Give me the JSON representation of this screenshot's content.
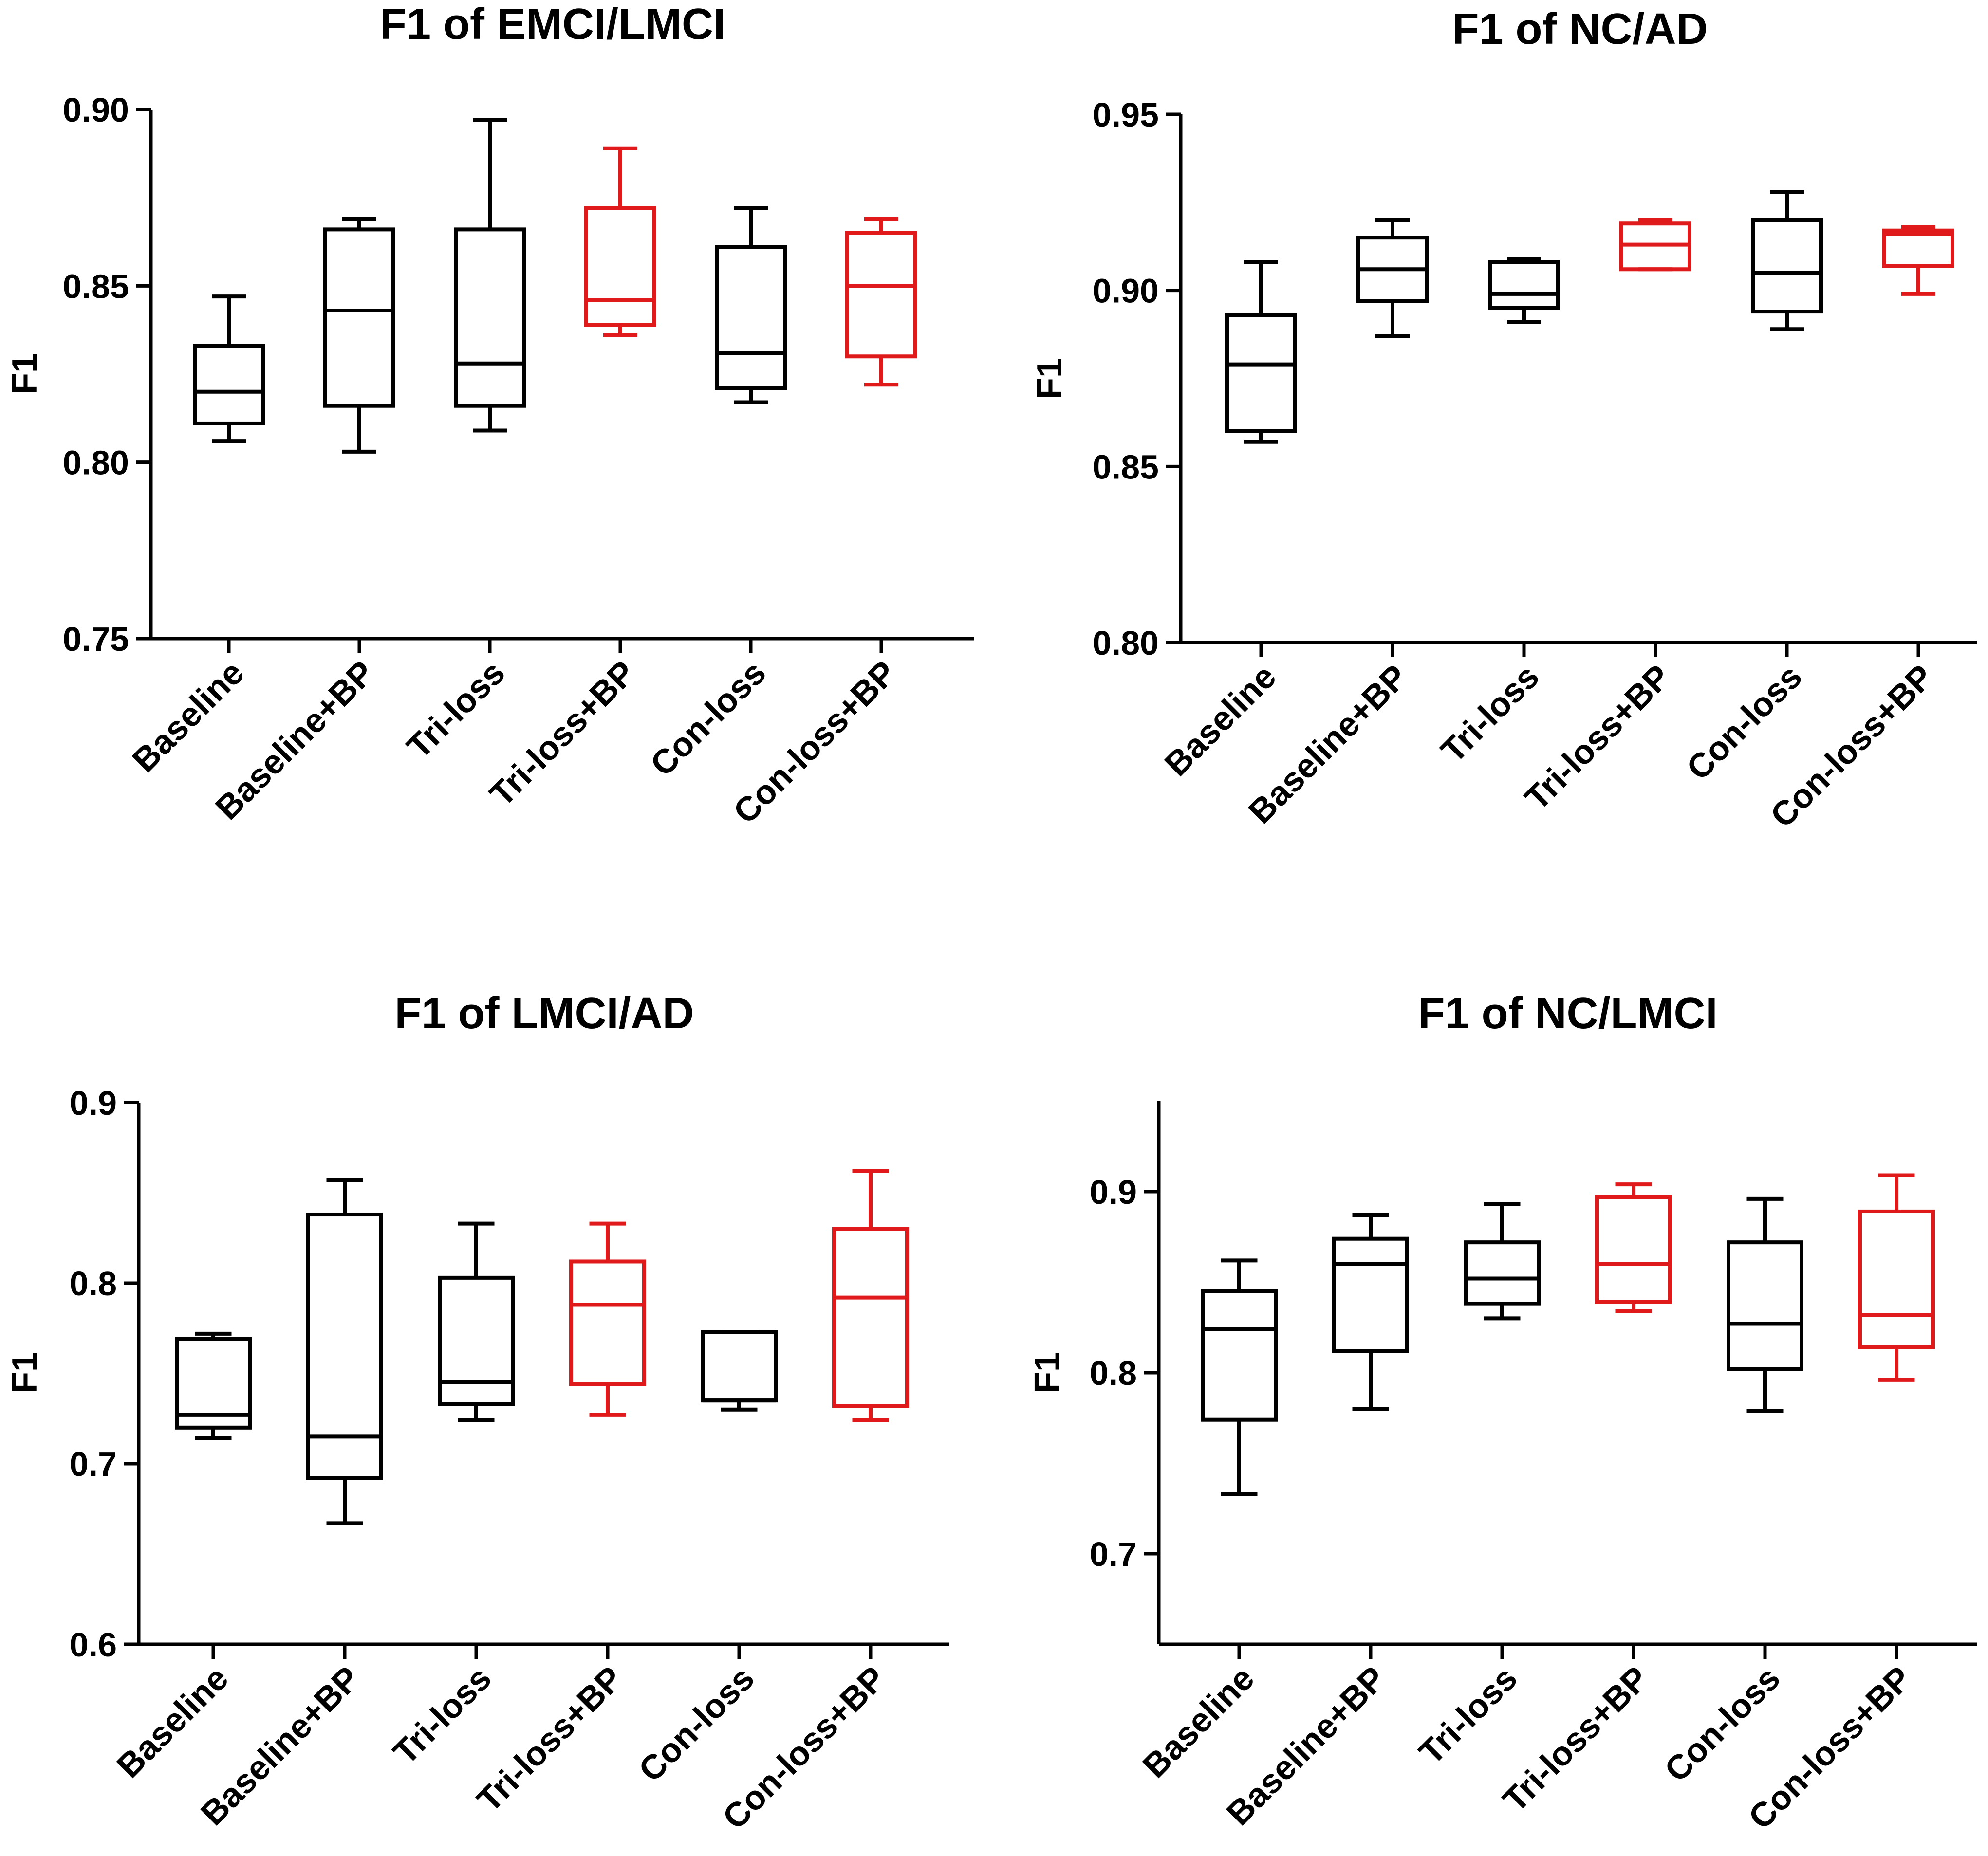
{
  "colors": {
    "default": "#000000",
    "highlight": "#e0191b"
  },
  "chart_data": [
    {
      "type": "box",
      "title": "F1 of EMCI/LMCI",
      "ylabel": "F1",
      "xlabel": "",
      "ylim": [
        0.75,
        0.9
      ],
      "yticks": [
        "0.75",
        "0.80",
        "0.85",
        "0.90"
      ],
      "yticks_values": [
        0.75,
        0.8,
        0.85,
        0.9
      ],
      "categories": [
        "Baseline",
        "Baseline+BP",
        "Tri-loss",
        "Tri-loss+BP",
        "Con-loss",
        "Con-loss+BP"
      ],
      "highlight": [
        false,
        false,
        false,
        true,
        false,
        true
      ],
      "boxes": [
        {
          "min": 0.806,
          "q1": 0.811,
          "median": 0.82,
          "q3": 0.833,
          "max": 0.847
        },
        {
          "min": 0.803,
          "q1": 0.816,
          "median": 0.843,
          "q3": 0.866,
          "max": 0.869
        },
        {
          "min": 0.809,
          "q1": 0.816,
          "median": 0.828,
          "q3": 0.866,
          "max": 0.897
        },
        {
          "min": 0.836,
          "q1": 0.839,
          "median": 0.846,
          "q3": 0.872,
          "max": 0.889
        },
        {
          "min": 0.817,
          "q1": 0.821,
          "median": 0.831,
          "q3": 0.861,
          "max": 0.872
        },
        {
          "min": 0.822,
          "q1": 0.83,
          "median": 0.85,
          "q3": 0.865,
          "max": 0.869
        }
      ]
    },
    {
      "type": "box",
      "title": "F1 of NC/AD",
      "ylabel": "F1",
      "xlabel": "",
      "ylim": [
        0.8,
        0.95
      ],
      "yticks": [
        "0.80",
        "0.85",
        "0.90",
        "0.95"
      ],
      "yticks_values": [
        0.8,
        0.85,
        0.9,
        0.95
      ],
      "categories": [
        "Baseline",
        "Baseline+BP",
        "Tri-loss",
        "Tri-loss+BP",
        "Con-loss",
        "Con-loss+BP"
      ],
      "highlight": [
        false,
        false,
        false,
        true,
        false,
        true
      ],
      "boxes": [
        {
          "min": 0.857,
          "q1": 0.86,
          "median": 0.879,
          "q3": 0.893,
          "max": 0.908
        },
        {
          "min": 0.887,
          "q1": 0.897,
          "median": 0.906,
          "q3": 0.915,
          "max": 0.92
        },
        {
          "min": 0.891,
          "q1": 0.895,
          "median": 0.899,
          "q3": 0.908,
          "max": 0.909
        },
        {
          "min": 0.906,
          "q1": 0.906,
          "median": 0.913,
          "q3": 0.919,
          "max": 0.92
        },
        {
          "min": 0.889,
          "q1": 0.894,
          "median": 0.905,
          "q3": 0.92,
          "max": 0.928
        },
        {
          "min": 0.899,
          "q1": 0.907,
          "median": 0.916,
          "q3": 0.917,
          "max": 0.918
        }
      ]
    },
    {
      "type": "box",
      "title": "F1 of LMCI/AD",
      "ylabel": "F1",
      "xlabel": "",
      "ylim": [
        0.6,
        0.9
      ],
      "yticks": [
        "0.6",
        "0.7",
        "0.8",
        "0.9"
      ],
      "yticks_values": [
        0.6,
        0.7,
        0.8,
        0.9
      ],
      "categories": [
        "Baseline",
        "Baseline+BP",
        "Tri-loss",
        "Tri-loss+BP",
        "Con-loss",
        "Con-loss+BP"
      ],
      "highlight": [
        false,
        false,
        false,
        true,
        false,
        true
      ],
      "boxes": [
        {
          "min": 0.714,
          "q1": 0.72,
          "median": 0.727,
          "q3": 0.769,
          "max": 0.772
        },
        {
          "min": 0.667,
          "q1": 0.692,
          "median": 0.715,
          "q3": 0.838,
          "max": 0.857
        },
        {
          "min": 0.724,
          "q1": 0.733,
          "median": 0.745,
          "q3": 0.803,
          "max": 0.833
        },
        {
          "min": 0.727,
          "q1": 0.744,
          "median": 0.788,
          "q3": 0.812,
          "max": 0.833
        },
        {
          "min": 0.73,
          "q1": 0.735,
          "median": 0.735,
          "q3": 0.773,
          "max": 0.773
        },
        {
          "min": 0.724,
          "q1": 0.732,
          "median": 0.792,
          "q3": 0.83,
          "max": 0.862
        }
      ]
    },
    {
      "type": "box",
      "title": "F1 of NC/LMCI",
      "ylabel": "F1",
      "xlabel": "",
      "ylim": [
        0.65,
        0.95
      ],
      "yticks": [
        "0.7",
        "0.8",
        "0.9"
      ],
      "yticks_values": [
        0.7,
        0.8,
        0.9
      ],
      "categories": [
        "Baseline",
        "Baseline+BP",
        "Tri-loss",
        "Tri-loss+BP",
        "Con-loss",
        "Con-loss+BP"
      ],
      "highlight": [
        false,
        false,
        false,
        true,
        false,
        true
      ],
      "boxes": [
        {
          "min": 0.733,
          "q1": 0.774,
          "median": 0.824,
          "q3": 0.845,
          "max": 0.862
        },
        {
          "min": 0.78,
          "q1": 0.812,
          "median": 0.86,
          "q3": 0.874,
          "max": 0.887
        },
        {
          "min": 0.83,
          "q1": 0.838,
          "median": 0.852,
          "q3": 0.872,
          "max": 0.893
        },
        {
          "min": 0.834,
          "q1": 0.839,
          "median": 0.86,
          "q3": 0.897,
          "max": 0.904
        },
        {
          "min": 0.779,
          "q1": 0.802,
          "median": 0.827,
          "q3": 0.872,
          "max": 0.896
        },
        {
          "min": 0.796,
          "q1": 0.814,
          "median": 0.832,
          "q3": 0.889,
          "max": 0.909
        }
      ]
    }
  ]
}
